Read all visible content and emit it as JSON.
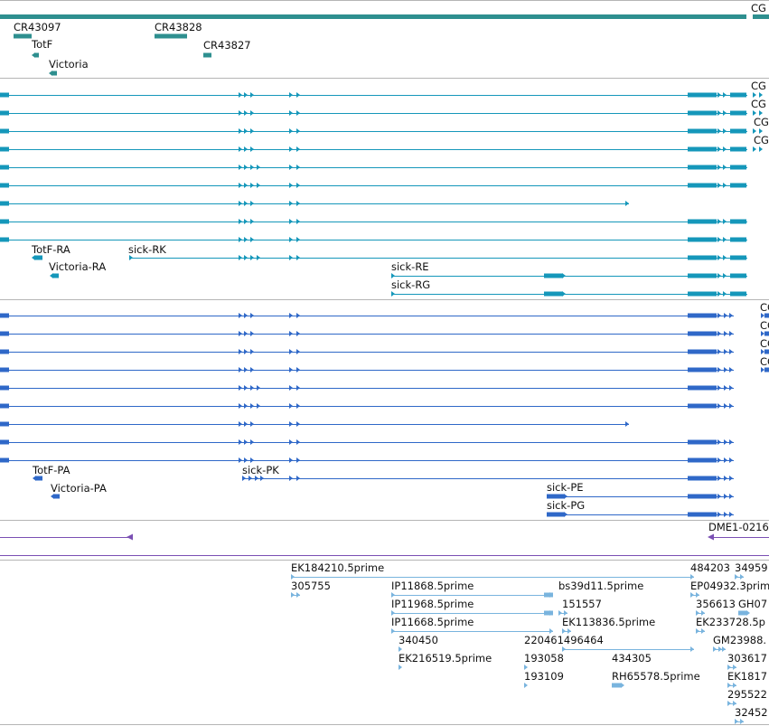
{
  "colors": {
    "gene": "#2e8f8f",
    "transcript": "#1597ba",
    "protein": "#2f68c8",
    "repeat": "#7a4fb3",
    "est": "#79b4de",
    "separator": "#b5b5b5"
  },
  "tracks": {
    "genes": {
      "label_cut": "CG",
      "features": [
        {
          "label": "CR43097"
        },
        {
          "label": "TotF"
        },
        {
          "label": "Victoria"
        },
        {
          "label": "CR43828"
        },
        {
          "label": "CR43827"
        }
      ]
    },
    "transcripts": {
      "labels": [
        "sick-RK",
        "TotF-RA",
        "Victoria-RA",
        "sick-RE",
        "sick-RG"
      ],
      "cut_labels": [
        "CG",
        "CG",
        "CG",
        "CG"
      ]
    },
    "proteins": {
      "labels": [
        "TotF-PA",
        "sick-PK",
        "Victoria-PA",
        "sick-PE",
        "sick-PG"
      ],
      "cut_labels": [
        "CG",
        "CG",
        "CG",
        "CG"
      ]
    },
    "repeats": {
      "labels": [
        "DME1-0216"
      ]
    },
    "ests": {
      "labels": [
        "EK184210.5prime",
        "305755",
        "IP11868.5prime",
        "IP11968.5prime",
        "IP11668.5prime",
        "340450",
        "EK216519.5prime",
        "bs39d11.5prime",
        "151557",
        "EK113836.5prime",
        "220461496464",
        "193058",
        "193109",
        "434305",
        "RH65578.5prime",
        "484203",
        "34959",
        "EP04932.3prime",
        "356613",
        "GH07",
        "EK233728.5p",
        "GM23988.",
        "303617",
        "EK1817",
        "295522",
        "32452"
      ]
    }
  }
}
